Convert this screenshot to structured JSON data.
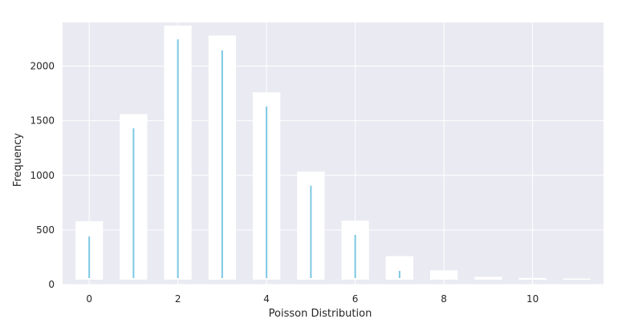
{
  "chart_data": {
    "type": "bar",
    "xlabel": "Poisson Distribution",
    "ylabel": "Frequency",
    "xlim": [
      -0.6,
      11.6
    ],
    "ylim": [
      0,
      2400
    ],
    "x_ticks": [
      0,
      2,
      4,
      6,
      8,
      10
    ],
    "y_ticks": [
      0,
      500,
      1000,
      1500,
      2000
    ],
    "grid": true,
    "series": [
      {
        "x": [
          0,
          1,
          2,
          3,
          4,
          5,
          6,
          7,
          8,
          9,
          10,
          11
        ],
        "values": [
          580,
          1560,
          2370,
          2280,
          1760,
          1035,
          585,
          260,
          130,
          70,
          60,
          55
        ]
      },
      {
        "x": [
          0,
          1,
          2,
          3,
          4,
          5,
          6,
          7,
          8,
          9,
          10,
          11
        ],
        "values": [
          440,
          1430,
          2245,
          2145,
          1630,
          905,
          455,
          125,
          0,
          0,
          0,
          0
        ]
      }
    ],
    "colors": {
      "background": "#eaeaf2",
      "grid": "#ffffff",
      "bars": "#ffffff",
      "lines": "#7ec8e3",
      "text": "#262626"
    }
  }
}
